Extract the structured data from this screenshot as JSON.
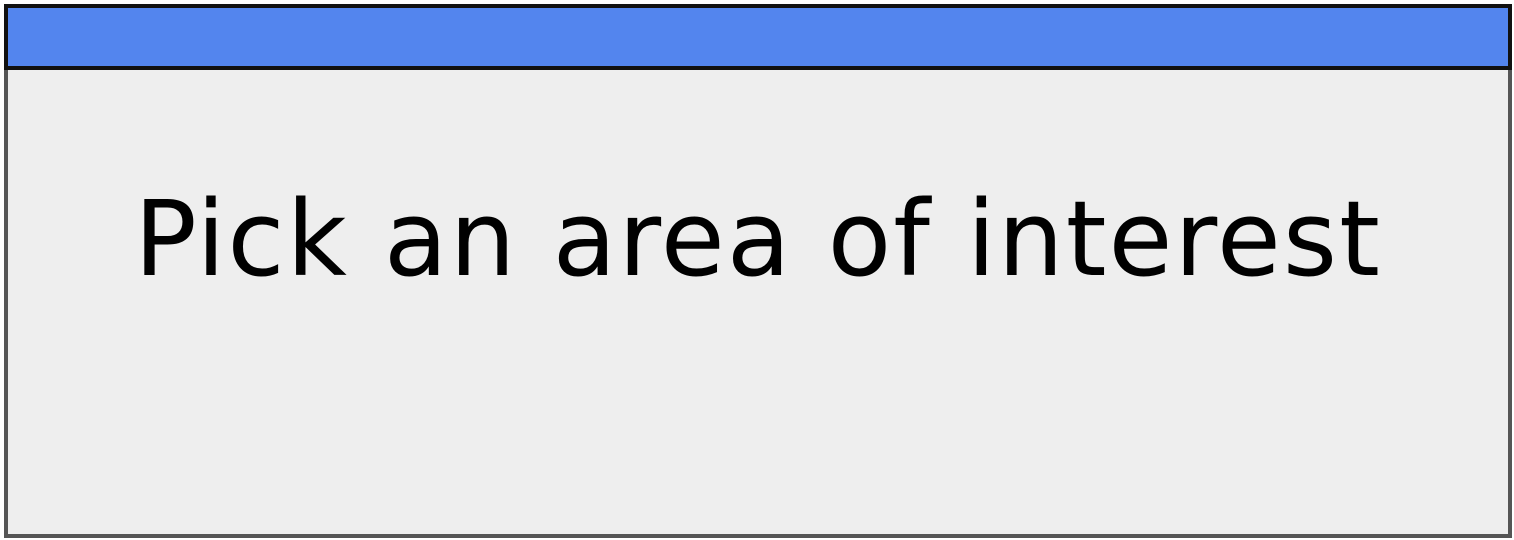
{
  "dialog": {
    "message": "Pick an area of interest"
  },
  "colors": {
    "titlebar": "#5385ee",
    "background": "#eeeeee",
    "border": "#555555",
    "text": "#000000"
  }
}
